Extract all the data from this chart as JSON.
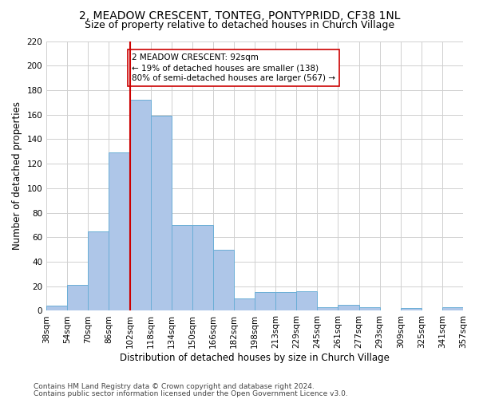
{
  "title": "2, MEADOW CRESCENT, TONTEG, PONTYPRIDD, CF38 1NL",
  "subtitle": "Size of property relative to detached houses in Church Village",
  "xlabel": "Distribution of detached houses by size in Church Village",
  "ylabel": "Number of detached properties",
  "bar_values": [
    4,
    21,
    65,
    129,
    172,
    159,
    70,
    70,
    50,
    10,
    15,
    15,
    16,
    3,
    5,
    3,
    0,
    2,
    0,
    3
  ],
  "bin_labels": [
    "38sqm",
    "54sqm",
    "70sqm",
    "86sqm",
    "102sqm",
    "118sqm",
    "134sqm",
    "150sqm",
    "166sqm",
    "182sqm",
    "198sqm",
    "213sqm",
    "229sqm",
    "245sqm",
    "261sqm",
    "277sqm",
    "293sqm",
    "309sqm",
    "325sqm",
    "341sqm",
    "357sqm"
  ],
  "bar_color": "#aec6e8",
  "bar_edge_color": "#6aaed6",
  "vline_x_index": 3.5,
  "vline_color": "#cc0000",
  "annotation_text": "2 MEADOW CRESCENT: 92sqm\n← 19% of detached houses are smaller (138)\n80% of semi-detached houses are larger (567) →",
  "annotation_box_color": "#ffffff",
  "annotation_box_edge": "#cc0000",
  "ylim": [
    0,
    220
  ],
  "yticks": [
    0,
    20,
    40,
    60,
    80,
    100,
    120,
    140,
    160,
    180,
    200,
    220
  ],
  "footnote1": "Contains HM Land Registry data © Crown copyright and database right 2024.",
  "footnote2": "Contains public sector information licensed under the Open Government Licence v3.0.",
  "title_fontsize": 10,
  "subtitle_fontsize": 9,
  "axis_label_fontsize": 8.5,
  "tick_fontsize": 7.5,
  "annotation_fontsize": 7.5,
  "footnote_fontsize": 6.5
}
